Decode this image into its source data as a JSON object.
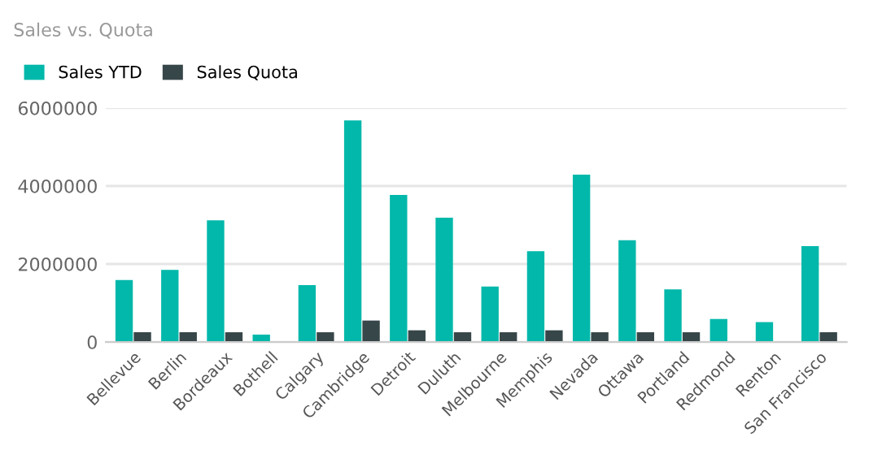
{
  "chart_data": {
    "type": "bar",
    "title": "Sales vs. Quota",
    "categories": [
      "Bellevue",
      "Berlin",
      "Bordeaux",
      "Bothell",
      "Calgary",
      "Cambridge",
      "Detroit",
      "Duluth",
      "Melbourne",
      "Memphis",
      "Nevada",
      "Ottawa",
      "Portland",
      "Redmond",
      "Renton",
      "San Francisco"
    ],
    "series": [
      {
        "name": "Sales YTD",
        "color": "#01b8aa",
        "values": [
          1590000,
          1850000,
          3120000,
          190000,
          1460000,
          5680000,
          3770000,
          3190000,
          1420000,
          2330000,
          4290000,
          2610000,
          1350000,
          590000,
          510000,
          2460000
        ]
      },
      {
        "name": "Sales Quota",
        "color": "#374649",
        "values": [
          250000,
          250000,
          250000,
          null,
          250000,
          550000,
          300000,
          250000,
          250000,
          300000,
          250000,
          250000,
          250000,
          null,
          null,
          250000
        ]
      }
    ],
    "ylim": [
      0,
      6000000
    ],
    "yticks": [
      0,
      2000000,
      4000000,
      6000000
    ],
    "grid": "y",
    "legend": "top left"
  }
}
